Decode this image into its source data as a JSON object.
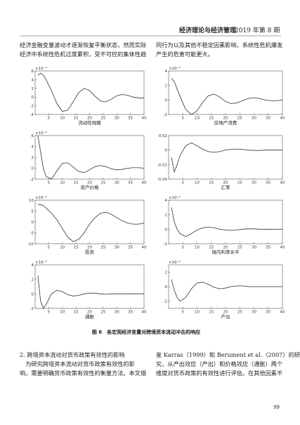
{
  "header": {
    "journal": "经济理论与经济管理",
    "issue": "2019 年第 8 期"
  },
  "top_text": {
    "left": [
      "经济金融变量波动才逐渐恢复平衡状态，然而实际",
      "经济中系统性危机过度累积，受不可控的集体性趋"
    ],
    "right": [
      "同行为以及其他不稳定因素影响，系统性危机爆发",
      "产生的危害可能更大。"
    ]
  },
  "chart_data": [
    {
      "type": "line",
      "xlabel": "流动性规模",
      "y_exponent": "×10⁻³",
      "x": [
        1,
        2,
        3,
        4,
        6,
        8,
        10,
        12,
        14,
        16,
        18,
        20,
        22,
        24,
        26,
        28,
        30,
        32,
        34,
        36,
        38,
        40
      ],
      "values": [
        5,
        5.5,
        5,
        4,
        1.5,
        -1.5,
        -3.3,
        -3,
        -1,
        1,
        2,
        1.5,
        0.2,
        -0.9,
        -1.1,
        -0.5,
        0.3,
        0.6,
        0.4,
        0,
        -0.2,
        -0.2
      ],
      "xlim": [
        0,
        40
      ],
      "xticks": [
        5,
        10,
        15,
        20,
        25,
        30,
        35,
        40
      ],
      "ylim": [
        -4,
        6
      ],
      "yticks": [
        -4,
        -2,
        0,
        2,
        4,
        6
      ]
    },
    {
      "type": "line",
      "xlabel": "房地产消费",
      "y_exponent": "×10⁻³",
      "x": [
        1,
        2,
        3,
        4,
        6,
        8,
        10,
        12,
        14,
        16,
        18,
        20,
        22,
        24,
        26,
        28,
        30,
        32,
        34,
        36,
        38,
        40
      ],
      "values": [
        3,
        2.5,
        1.5,
        0.5,
        -1.3,
        -2,
        -1.5,
        -0.3,
        0.6,
        0.8,
        0.4,
        -0.2,
        -0.5,
        -0.4,
        -0.1,
        0.2,
        0.3,
        0.2,
        0,
        -0.1,
        -0.1,
        0
      ],
      "xlim": [
        0,
        40
      ],
      "xticks": [
        5,
        10,
        15,
        20,
        25,
        30,
        35,
        40
      ],
      "ylim": [
        -2,
        4
      ],
      "yticks": [
        -2,
        0,
        2,
        4
      ]
    },
    {
      "type": "line",
      "xlabel": "资产价格",
      "y_exponent": "×10⁻³",
      "x": [
        1,
        2,
        3,
        4,
        6,
        8,
        10,
        12,
        14,
        16,
        18,
        20,
        22,
        24,
        26,
        28,
        30,
        32,
        34,
        36,
        38,
        40
      ],
      "values": [
        6,
        3,
        0,
        -1.5,
        -2,
        -0.5,
        0.9,
        1,
        0.2,
        -0.6,
        -0.8,
        -0.3,
        0.3,
        0.5,
        0.3,
        -0.1,
        -0.3,
        -0.2,
        0,
        0.1,
        0.1,
        0
      ],
      "xlim": [
        0,
        40
      ],
      "xticks": [
        5,
        10,
        15,
        20,
        25,
        30,
        35,
        40
      ],
      "ylim": [
        -2,
        6
      ],
      "yticks": [
        -2,
        0,
        2,
        4,
        6
      ]
    },
    {
      "type": "line",
      "xlabel": "汇率",
      "x": [
        1,
        2,
        3,
        4,
        6,
        8,
        10,
        12,
        14,
        16,
        18,
        20,
        22,
        24,
        26,
        28,
        30,
        32,
        34,
        36,
        38,
        40
      ],
      "values": [
        -0.01,
        -0.03,
        -0.02,
        -0.008,
        0.006,
        0.01,
        0.006,
        0.001,
        -0.002,
        -0.003,
        -0.002,
        0,
        0.001,
        0.0015,
        0.001,
        0,
        -0.0005,
        -0.0005,
        0,
        0,
        0,
        0
      ],
      "xlim": [
        0,
        40
      ],
      "xticks": [
        5,
        10,
        15,
        20,
        25,
        30,
        35,
        40
      ],
      "ylim": [
        -0.04,
        0.02
      ],
      "yticks": [
        -0.04,
        -0.02,
        0,
        0.02
      ]
    },
    {
      "type": "line",
      "xlabel": "投资",
      "y_exponent": "×10⁻⁴",
      "x": [
        1,
        2,
        3,
        4,
        6,
        8,
        10,
        12,
        14,
        16,
        18,
        20,
        22,
        24,
        26,
        28,
        30,
        32,
        34,
        36,
        38,
        40
      ],
      "values": [
        8,
        8,
        7.5,
        6.5,
        4,
        1,
        -3,
        -7,
        -9,
        -8,
        -5,
        -1,
        2,
        4,
        4.5,
        3.5,
        2,
        0.5,
        -0.5,
        -1,
        -1,
        -0.5
      ],
      "xlim": [
        0,
        40
      ],
      "xticks": [
        5,
        10,
        15,
        20,
        25,
        30,
        35,
        40
      ],
      "ylim": [
        -10,
        10
      ],
      "yticks": [
        -10,
        -5,
        0,
        5,
        10
      ]
    },
    {
      "type": "line",
      "xlabel": "境内利率水平",
      "y_exponent": "×10⁻³",
      "x": [
        1,
        2,
        3,
        4,
        6,
        8,
        10,
        12,
        14,
        16,
        18,
        20,
        22,
        24,
        26,
        28,
        30,
        32,
        34,
        36,
        38,
        40
      ],
      "values": [
        3,
        1,
        0,
        -0.6,
        -1,
        -0.6,
        -0.1,
        0.2,
        0.3,
        0.2,
        0,
        -0.1,
        -0.15,
        -0.1,
        0,
        0.05,
        0.05,
        0,
        0,
        0,
        0,
        0
      ],
      "xlim": [
        0,
        40
      ],
      "xticks": [
        5,
        10,
        15,
        20,
        25,
        30,
        35,
        40
      ],
      "ylim": [
        -2,
        4
      ],
      "yticks": [
        -2,
        0,
        2,
        4
      ]
    },
    {
      "type": "line",
      "xlabel": "通胀",
      "y_exponent": "×10⁻³",
      "x": [
        1,
        2,
        3,
        4,
        6,
        8,
        10,
        12,
        14,
        16,
        18,
        20,
        22,
        24,
        26,
        28,
        30,
        32,
        34,
        36,
        38,
        40
      ],
      "values": [
        2.5,
        -1,
        -2,
        -1.5,
        0,
        0.5,
        0.3,
        -0.1,
        -0.3,
        -0.2,
        0,
        0.1,
        0.1,
        0,
        -0.05,
        0,
        0,
        0,
        0,
        0,
        0,
        0
      ],
      "xlim": [
        0,
        40
      ],
      "xticks": [
        5,
        10,
        15,
        20,
        25,
        30,
        35,
        40
      ],
      "ylim": [
        -2,
        4
      ],
      "yticks": [
        -2,
        0,
        2,
        4
      ]
    },
    {
      "type": "line",
      "xlabel": "产出",
      "y_exponent": "×10⁻³",
      "x": [
        1,
        2,
        3,
        4,
        6,
        8,
        10,
        12,
        14,
        16,
        18,
        20,
        22,
        24,
        26,
        28,
        30,
        32,
        34,
        36,
        38,
        40
      ],
      "values": [
        1,
        -0.5,
        -1.5,
        -2,
        -1.5,
        -0.3,
        0.5,
        0.6,
        0.3,
        -0.1,
        -0.3,
        -0.2,
        0,
        0.1,
        0.1,
        0,
        0,
        0,
        0,
        0,
        0,
        0
      ],
      "xlim": [
        0,
        40
      ],
      "xticks": [
        5,
        10,
        15,
        20,
        25,
        30,
        35,
        40
      ],
      "ylim": [
        -3,
        3
      ],
      "yticks": [
        -2,
        0,
        2
      ]
    }
  ],
  "caption": "图 6　各宏观经济变量对跨境资本流动冲击的响应",
  "bottom_text": {
    "left": [
      "2. 跨境资本流动对货币政策有效性的影响",
      "　为研究跨境资本流动对货币政策有效性的影",
      "响，需要明确货币政策有效性的衡量方法。本文借"
    ],
    "right": [
      "鉴 Karras（1999）和 Berument et al.（2007）的研",
      "究，从产出效应（产出）和价格效应（通胀）两个",
      "维度对货币政策的有效性进行评估。在其他因素不"
    ]
  },
  "page_number": "99"
}
